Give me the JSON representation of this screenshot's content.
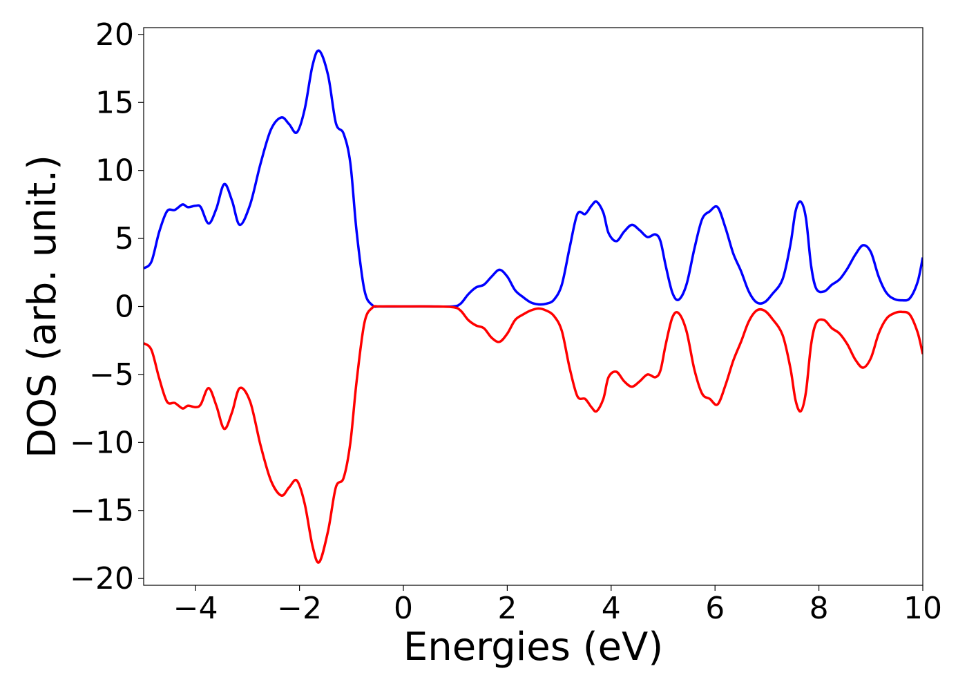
{
  "chart_data": {
    "type": "line",
    "title": "",
    "xlabel": "Energies (eV)",
    "ylabel": "DOS (arb. unit.)",
    "xlim": [
      -5,
      10
    ],
    "ylim": [
      -20.5,
      20.5
    ],
    "grid": false,
    "legend": "none",
    "x_ticks": [
      -4,
      -2,
      0,
      2,
      4,
      6,
      8,
      10
    ],
    "x_tick_labels": [
      "−4",
      "−2",
      "0",
      "2",
      "4",
      "6",
      "8",
      "10"
    ],
    "y_ticks": [
      -20,
      -15,
      -10,
      -5,
      0,
      5,
      10,
      15,
      20
    ],
    "y_tick_labels": [
      "−20",
      "−15",
      "−10",
      "−5",
      "0",
      "5",
      "10",
      "15",
      "20"
    ],
    "series": [
      {
        "color": "#0000ff",
        "points": [
          [
            -5.0,
            2.8
          ],
          [
            -4.85,
            3.3
          ],
          [
            -4.7,
            5.5
          ],
          [
            -4.55,
            7.0
          ],
          [
            -4.4,
            7.1
          ],
          [
            -4.25,
            7.5
          ],
          [
            -4.15,
            7.3
          ],
          [
            -4.0,
            7.4
          ],
          [
            -3.9,
            7.3
          ],
          [
            -3.75,
            6.1
          ],
          [
            -3.6,
            7.2
          ],
          [
            -3.45,
            9.0
          ],
          [
            -3.3,
            7.8
          ],
          [
            -3.15,
            6.0
          ],
          [
            -2.95,
            7.5
          ],
          [
            -2.75,
            10.5
          ],
          [
            -2.55,
            13.0
          ],
          [
            -2.35,
            13.9
          ],
          [
            -2.2,
            13.4
          ],
          [
            -2.05,
            12.8
          ],
          [
            -1.9,
            14.5
          ],
          [
            -1.75,
            17.7
          ],
          [
            -1.62,
            18.8
          ],
          [
            -1.45,
            17.0
          ],
          [
            -1.3,
            13.5
          ],
          [
            -1.15,
            12.7
          ],
          [
            -1.02,
            10.5
          ],
          [
            -0.9,
            5.5
          ],
          [
            -0.75,
            1.2
          ],
          [
            -0.6,
            0.1
          ],
          [
            -0.45,
            0.0
          ],
          [
            0.0,
            0.0
          ],
          [
            0.5,
            0.0
          ],
          [
            0.95,
            0.0
          ],
          [
            1.1,
            0.2
          ],
          [
            1.25,
            0.9
          ],
          [
            1.4,
            1.4
          ],
          [
            1.55,
            1.6
          ],
          [
            1.7,
            2.2
          ],
          [
            1.85,
            2.7
          ],
          [
            2.0,
            2.2
          ],
          [
            2.15,
            1.2
          ],
          [
            2.3,
            0.7
          ],
          [
            2.45,
            0.3
          ],
          [
            2.6,
            0.15
          ],
          [
            2.75,
            0.2
          ],
          [
            2.9,
            0.5
          ],
          [
            3.05,
            1.6
          ],
          [
            3.2,
            4.3
          ],
          [
            3.35,
            6.8
          ],
          [
            3.5,
            6.8
          ],
          [
            3.62,
            7.4
          ],
          [
            3.72,
            7.7
          ],
          [
            3.85,
            6.9
          ],
          [
            3.95,
            5.4
          ],
          [
            4.1,
            4.8
          ],
          [
            4.25,
            5.5
          ],
          [
            4.4,
            6.0
          ],
          [
            4.55,
            5.6
          ],
          [
            4.7,
            5.1
          ],
          [
            4.85,
            5.3
          ],
          [
            4.95,
            4.8
          ],
          [
            5.05,
            3.0
          ],
          [
            5.18,
            1.0
          ],
          [
            5.3,
            0.5
          ],
          [
            5.45,
            1.6
          ],
          [
            5.6,
            4.2
          ],
          [
            5.75,
            6.4
          ],
          [
            5.9,
            7.0
          ],
          [
            6.05,
            7.3
          ],
          [
            6.2,
            5.8
          ],
          [
            6.35,
            3.9
          ],
          [
            6.5,
            2.6
          ],
          [
            6.65,
            1.1
          ],
          [
            6.8,
            0.3
          ],
          [
            6.95,
            0.3
          ],
          [
            7.1,
            0.9
          ],
          [
            7.3,
            2.0
          ],
          [
            7.45,
            4.5
          ],
          [
            7.55,
            7.0
          ],
          [
            7.65,
            7.7
          ],
          [
            7.75,
            6.5
          ],
          [
            7.85,
            3.0
          ],
          [
            7.95,
            1.3
          ],
          [
            8.1,
            1.1
          ],
          [
            8.25,
            1.6
          ],
          [
            8.4,
            2.0
          ],
          [
            8.55,
            2.8
          ],
          [
            8.7,
            3.8
          ],
          [
            8.85,
            4.5
          ],
          [
            9.0,
            4.0
          ],
          [
            9.15,
            2.2
          ],
          [
            9.3,
            1.0
          ],
          [
            9.45,
            0.55
          ],
          [
            9.6,
            0.45
          ],
          [
            9.75,
            0.6
          ],
          [
            9.9,
            1.8
          ],
          [
            10.0,
            3.6
          ]
        ]
      },
      {
        "color": "#ff0000",
        "points": [
          [
            -5.0,
            -2.7
          ],
          [
            -4.85,
            -3.2
          ],
          [
            -4.7,
            -5.3
          ],
          [
            -4.55,
            -7.0
          ],
          [
            -4.4,
            -7.1
          ],
          [
            -4.25,
            -7.5
          ],
          [
            -4.15,
            -7.3
          ],
          [
            -4.0,
            -7.4
          ],
          [
            -3.9,
            -7.2
          ],
          [
            -3.75,
            -6.0
          ],
          [
            -3.6,
            -7.3
          ],
          [
            -3.45,
            -9.0
          ],
          [
            -3.3,
            -7.8
          ],
          [
            -3.15,
            -6.0
          ],
          [
            -2.95,
            -7.0
          ],
          [
            -2.75,
            -10.2
          ],
          [
            -2.55,
            -12.8
          ],
          [
            -2.35,
            -13.9
          ],
          [
            -2.2,
            -13.3
          ],
          [
            -2.05,
            -12.8
          ],
          [
            -1.9,
            -14.5
          ],
          [
            -1.75,
            -17.6
          ],
          [
            -1.62,
            -18.8
          ],
          [
            -1.45,
            -16.5
          ],
          [
            -1.3,
            -13.3
          ],
          [
            -1.15,
            -12.6
          ],
          [
            -1.02,
            -10.0
          ],
          [
            -0.9,
            -5.5
          ],
          [
            -0.75,
            -1.2
          ],
          [
            -0.6,
            -0.1
          ],
          [
            -0.45,
            0.0
          ],
          [
            0.0,
            0.0
          ],
          [
            0.5,
            0.0
          ],
          [
            0.95,
            -0.05
          ],
          [
            1.1,
            -0.3
          ],
          [
            1.25,
            -1.0
          ],
          [
            1.4,
            -1.4
          ],
          [
            1.55,
            -1.6
          ],
          [
            1.7,
            -2.3
          ],
          [
            1.85,
            -2.6
          ],
          [
            2.0,
            -2.0
          ],
          [
            2.15,
            -1.0
          ],
          [
            2.3,
            -0.6
          ],
          [
            2.45,
            -0.3
          ],
          [
            2.6,
            -0.15
          ],
          [
            2.75,
            -0.3
          ],
          [
            2.9,
            -0.7
          ],
          [
            3.05,
            -1.8
          ],
          [
            3.2,
            -4.5
          ],
          [
            3.35,
            -6.6
          ],
          [
            3.5,
            -6.8
          ],
          [
            3.62,
            -7.4
          ],
          [
            3.72,
            -7.7
          ],
          [
            3.85,
            -6.8
          ],
          [
            3.95,
            -5.2
          ],
          [
            4.1,
            -4.8
          ],
          [
            4.25,
            -5.5
          ],
          [
            4.4,
            -5.9
          ],
          [
            4.55,
            -5.5
          ],
          [
            4.7,
            -5.0
          ],
          [
            4.85,
            -5.2
          ],
          [
            4.95,
            -4.7
          ],
          [
            5.05,
            -2.8
          ],
          [
            5.18,
            -0.8
          ],
          [
            5.3,
            -0.5
          ],
          [
            5.45,
            -1.8
          ],
          [
            5.6,
            -4.6
          ],
          [
            5.75,
            -6.4
          ],
          [
            5.9,
            -6.8
          ],
          [
            6.05,
            -7.2
          ],
          [
            6.2,
            -5.8
          ],
          [
            6.35,
            -4.0
          ],
          [
            6.5,
            -2.6
          ],
          [
            6.65,
            -1.1
          ],
          [
            6.8,
            -0.3
          ],
          [
            6.95,
            -0.3
          ],
          [
            7.1,
            -0.9
          ],
          [
            7.3,
            -2.1
          ],
          [
            7.45,
            -4.5
          ],
          [
            7.55,
            -6.9
          ],
          [
            7.65,
            -7.7
          ],
          [
            7.75,
            -6.3
          ],
          [
            7.85,
            -2.8
          ],
          [
            7.95,
            -1.2
          ],
          [
            8.1,
            -1.0
          ],
          [
            8.25,
            -1.6
          ],
          [
            8.4,
            -2.0
          ],
          [
            8.55,
            -2.8
          ],
          [
            8.7,
            -3.9
          ],
          [
            8.85,
            -4.5
          ],
          [
            9.0,
            -3.8
          ],
          [
            9.15,
            -2.0
          ],
          [
            9.3,
            -0.9
          ],
          [
            9.45,
            -0.5
          ],
          [
            9.6,
            -0.4
          ],
          [
            9.75,
            -0.6
          ],
          [
            9.9,
            -1.9
          ],
          [
            10.0,
            -3.5
          ]
        ]
      }
    ]
  }
}
